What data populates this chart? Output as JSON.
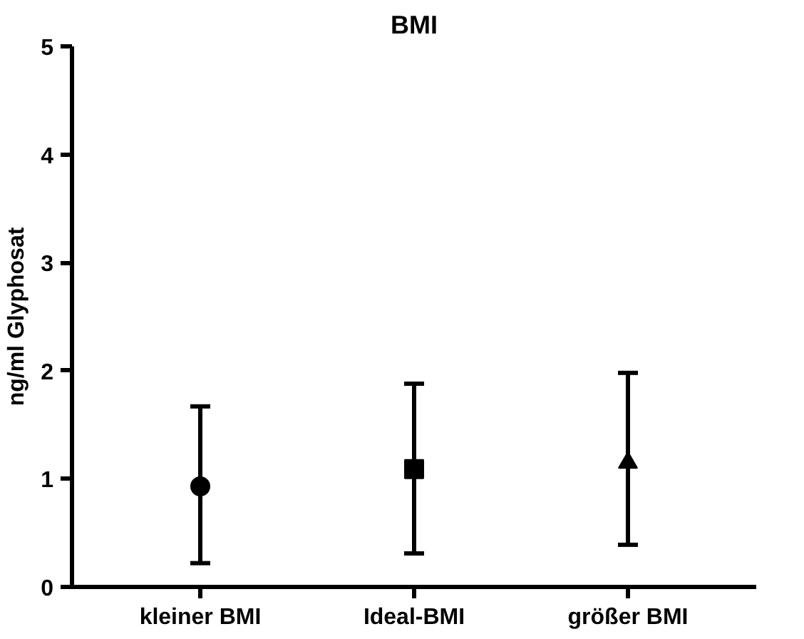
{
  "chart_data": {
    "type": "scatter",
    "title": "BMI",
    "ylabel": "ng/ml Glyphosat",
    "categories": [
      "kleiner BMI",
      "Ideal-BMI",
      "größer BMI"
    ],
    "series": [
      {
        "color": "#000000",
        "marker": "circle",
        "values": [
          0.93,
          null,
          null
        ],
        "errors": [
          [
            0.22,
            1.67
          ],
          null,
          null
        ]
      },
      {
        "color": "#000000",
        "marker": "square",
        "values": [
          null,
          1.09,
          null
        ],
        "errors": [
          null,
          [
            0.31,
            1.88
          ],
          null
        ]
      },
      {
        "color": "#000000",
        "marker": "triangle",
        "values": [
          null,
          null,
          1.15
        ],
        "errors": [
          null,
          null,
          [
            0.39,
            1.98
          ]
        ]
      }
    ],
    "ylim": [
      0,
      5
    ],
    "yticks": [
      0,
      1,
      2,
      3,
      4,
      5
    ],
    "grid": false
  }
}
